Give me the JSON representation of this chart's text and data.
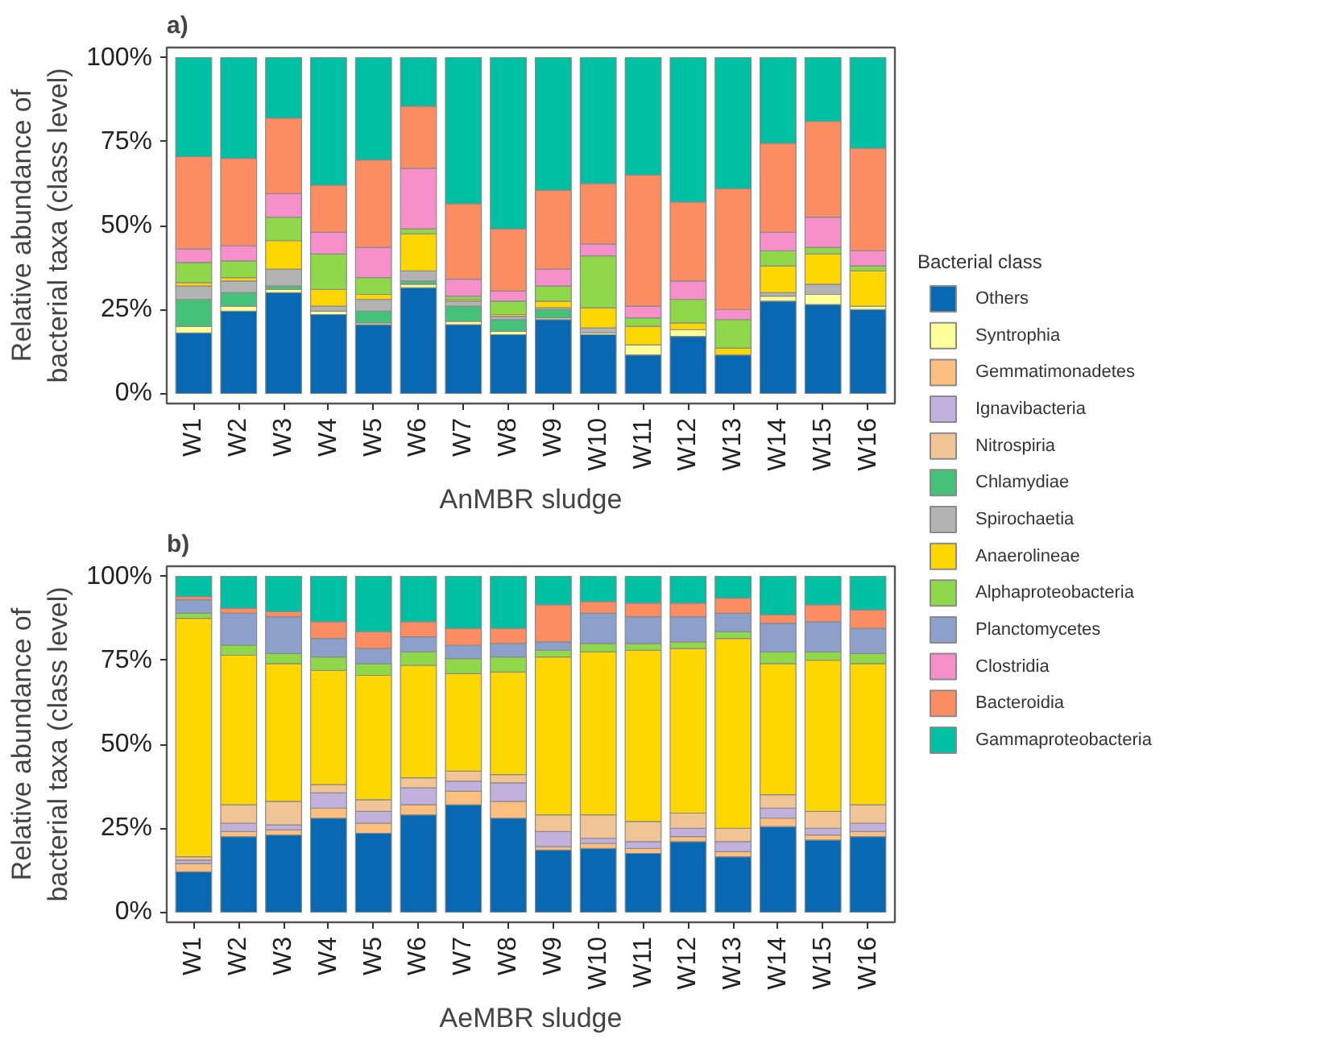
{
  "chart_data": [
    {
      "type": "bar",
      "title": "a)",
      "xlabel": "AnMBR sludge",
      "ylabel": "Relative abundance of\nbacterial taxa (class level)",
      "legend_title": "Bacterial class",
      "legend": "right",
      "stacked": true,
      "categories": [
        "W1",
        "W2",
        "W3",
        "W4",
        "W5",
        "W6",
        "W7",
        "W8",
        "W9",
        "W10",
        "W11",
        "W12",
        "W13",
        "W14",
        "W15",
        "W16"
      ],
      "ylim": [
        -3,
        103
      ],
      "yticks": [
        {
          "value": 0,
          "label": "0%"
        },
        {
          "value": 25,
          "label": "25%"
        },
        {
          "value": 50,
          "label": "50%"
        },
        {
          "value": 75,
          "label": "75%"
        },
        {
          "value": 100,
          "label": "100%"
        }
      ],
      "series": [
        {
          "name": "Others",
          "color": "#0868b2",
          "values": [
            18,
            24.5,
            30,
            23.5,
            20.5,
            31.5,
            20.5,
            17.5,
            22,
            17.5,
            11.5,
            17,
            11.5,
            27.5,
            26.5,
            25
          ]
        },
        {
          "name": "Syntrophia",
          "color": "#ffff99",
          "values": [
            2,
            1.5,
            1,
            1,
            0.5,
            1,
            1,
            1,
            0.5,
            0.5,
            3,
            2,
            0,
            1.5,
            3,
            1
          ]
        },
        {
          "name": "Gemmatimonadetes",
          "color": "#fdbf80",
          "values": [
            0,
            0,
            0,
            0,
            0,
            0,
            0,
            0,
            0,
            0,
            0,
            0,
            0,
            0,
            0,
            0
          ]
        },
        {
          "name": "Ignavibacteria",
          "color": "#c2b0dd",
          "values": [
            0,
            0,
            0,
            0,
            0,
            0,
            0,
            0,
            0,
            0,
            0,
            0,
            0,
            0,
            0,
            0
          ]
        },
        {
          "name": "Nitrospiria",
          "color": "#f0c494",
          "values": [
            0,
            0,
            0,
            0,
            0,
            0,
            0,
            0,
            0,
            0,
            0,
            0,
            0,
            0,
            0,
            0
          ]
        },
        {
          "name": "Chlamydiae",
          "color": "#45c27a",
          "values": [
            8,
            4,
            1,
            0,
            3.5,
            1,
            4.5,
            3.5,
            2.5,
            0,
            0,
            0,
            0,
            0,
            0,
            0
          ]
        },
        {
          "name": "Spirochaetia",
          "color": "#b3b3b3",
          "values": [
            4,
            3.5,
            5,
            1.5,
            3.5,
            3,
            1.5,
            1,
            0.5,
            1.5,
            0,
            0,
            0,
            1,
            3,
            0
          ]
        },
        {
          "name": "Anaerolineae",
          "color": "#ffd700",
          "values": [
            1,
            1,
            8.5,
            5,
            1.5,
            11,
            0.5,
            0.5,
            2,
            6,
            5.5,
            2,
            2,
            8,
            9,
            10.5
          ]
        },
        {
          "name": "Alphaproteobacteria",
          "color": "#8ed84a",
          "values": [
            6,
            5,
            7,
            10.5,
            5,
            1.5,
            1,
            4,
            4.5,
            15.5,
            2.5,
            7,
            8.5,
            4.5,
            2,
            1.5
          ]
        },
        {
          "name": "Planctomycetes",
          "color": "#8da0cb",
          "values": [
            0,
            0,
            0,
            0,
            0,
            0,
            0,
            0,
            0,
            0,
            0,
            0,
            0,
            0,
            0,
            0
          ]
        },
        {
          "name": "Clostridia",
          "color": "#f78fca",
          "values": [
            4,
            4.5,
            7,
            6.5,
            9,
            18,
            5,
            3,
            5,
            3.5,
            3.5,
            5.5,
            3,
            5.5,
            9,
            4.5
          ]
        },
        {
          "name": "Bacteroidia",
          "color": "#fc8d62",
          "values": [
            27.5,
            26,
            22.5,
            14,
            26,
            18.5,
            22.5,
            18.5,
            23.5,
            18,
            39,
            23.5,
            36,
            26.5,
            28.5,
            30.5
          ]
        },
        {
          "name": "Gammaproteobacteria",
          "color": "#00c0a3",
          "values": [
            29.5,
            30,
            18,
            38,
            30.5,
            14.5,
            43.5,
            51,
            39.5,
            37.5,
            35,
            43,
            39,
            25.5,
            19,
            27
          ]
        }
      ]
    },
    {
      "type": "bar",
      "title": "b)",
      "xlabel": "AeMBR sludge",
      "ylabel": "Relative abundance of\nbacterial taxa (class level)",
      "stacked": true,
      "categories": [
        "W1",
        "W2",
        "W3",
        "W4",
        "W5",
        "W6",
        "W7",
        "W8",
        "W9",
        "W10",
        "W11",
        "W12",
        "W13",
        "W14",
        "W15",
        "W16"
      ],
      "ylim": [
        -3,
        103
      ],
      "yticks": [
        {
          "value": 0,
          "label": "0%"
        },
        {
          "value": 25,
          "label": "25%"
        },
        {
          "value": 50,
          "label": "50%"
        },
        {
          "value": 75,
          "label": "75%"
        },
        {
          "value": 100,
          "label": "100%"
        }
      ],
      "series": [
        {
          "color": "#0868b2",
          "values": [
            12,
            22.5,
            23,
            28,
            23.5,
            29,
            32,
            28,
            18.5,
            19,
            17.5,
            21,
            16.5,
            25.5,
            21.5,
            22.5
          ]
        },
        {
          "color": "#ffff99",
          "values": [
            0,
            0,
            0,
            0,
            0,
            0,
            0,
            0,
            0,
            0,
            0,
            0,
            0,
            0,
            0,
            0
          ]
        },
        {
          "color": "#fdbf80",
          "values": [
            2.5,
            1.5,
            1.5,
            3,
            3,
            3,
            4,
            5,
            1,
            1.5,
            1.5,
            1.5,
            1.5,
            2.5,
            1.5,
            1.5
          ]
        },
        {
          "color": "#c2b0dd",
          "values": [
            1,
            2.5,
            1.5,
            4.5,
            3.5,
            5,
            3,
            5.5,
            4.5,
            1.5,
            2,
            2.5,
            3,
            3,
            2,
            2.5
          ]
        },
        {
          "color": "#f0c494",
          "values": [
            1,
            5.5,
            7,
            2.5,
            3.5,
            3,
            3,
            2.5,
            5,
            7,
            6,
            4.5,
            4,
            4,
            5,
            5.5
          ]
        },
        {
          "color": "#45c27a",
          "values": [
            0,
            0,
            0,
            0,
            0,
            0,
            0,
            0,
            0,
            0,
            0,
            0,
            0,
            0,
            0,
            0
          ]
        },
        {
          "color": "#b3b3b3",
          "values": [
            0,
            0,
            0,
            0,
            0,
            0,
            0,
            0,
            0,
            0,
            0,
            0,
            0,
            0,
            0,
            0
          ]
        },
        {
          "color": "#ffd700",
          "values": [
            71,
            44.5,
            41,
            34,
            37,
            33.5,
            29,
            30.5,
            47,
            48.5,
            51,
            49,
            56.5,
            39,
            45,
            42
          ]
        },
        {
          "color": "#8ed84a",
          "values": [
            1.5,
            3,
            3,
            4,
            3.5,
            4,
            4.5,
            4.5,
            2,
            2.5,
            2,
            2,
            2,
            3.5,
            2.5,
            3
          ]
        },
        {
          "color": "#8da0cb",
          "values": [
            4,
            9.5,
            11,
            5.5,
            4.5,
            4.5,
            4,
            4,
            2.5,
            9,
            8,
            7.5,
            5.5,
            8.5,
            9,
            7.5
          ]
        },
        {
          "color": "#f78fca",
          "values": [
            0,
            0,
            0,
            0,
            0,
            0,
            0,
            0,
            0,
            0,
            0,
            0,
            0,
            0,
            0,
            0
          ]
        },
        {
          "color": "#fc8d62",
          "values": [
            1,
            1.5,
            1.5,
            5,
            5,
            4.5,
            5,
            4.5,
            11,
            3.5,
            4,
            4,
            4.5,
            2.5,
            5,
            5.5
          ]
        },
        {
          "color": "#00c0a3",
          "values": [
            6,
            9.5,
            10.5,
            13.5,
            16.5,
            13.5,
            15.5,
            15.5,
            8.5,
            7.5,
            8,
            8,
            6.5,
            11.5,
            8.5,
            10
          ]
        }
      ]
    }
  ]
}
